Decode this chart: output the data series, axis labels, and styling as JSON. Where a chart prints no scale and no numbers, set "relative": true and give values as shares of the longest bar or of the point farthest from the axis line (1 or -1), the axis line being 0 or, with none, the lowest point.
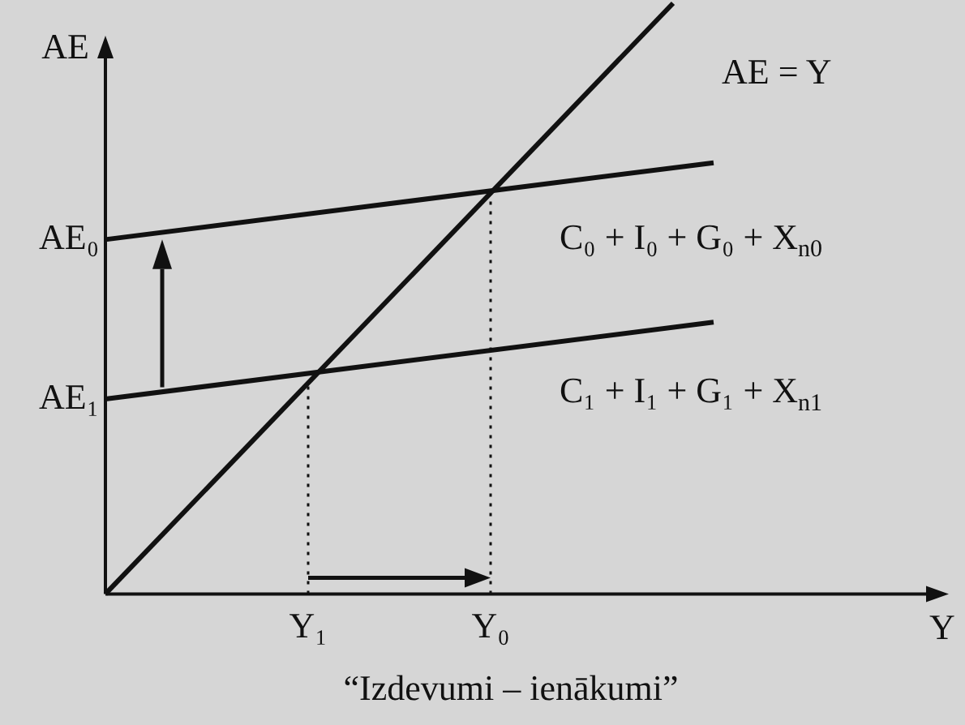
{
  "chart_data": {
    "type": "line",
    "relative": true,
    "title": "“Izdevumi – ienākumi”",
    "xlabel": "Y",
    "ylabel": "AE",
    "categories": [
      null,
      null,
      null,
      null,
      null,
      null,
      null,
      null,
      null,
      null,
      "Y₁",
      null,
      null,
      null,
      null,
      null,
      null,
      null,
      null,
      "Y₀",
      null,
      null,
      null,
      null,
      null,
      null,
      null,
      null,
      null,
      null,
      null,
      null,
      null,
      null,
      null,
      null,
      null,
      null,
      null,
      null,
      null
    ],
    "tick_labels": "x",
    "legend": false,
    "grid": false,
    "marker": "none",
    "series": [
      {
        "color": "#111111",
        "values": [
          0,
          null,
          null,
          null,
          null,
          null,
          null,
          null,
          null,
          null,
          null,
          null,
          null,
          null,
          null,
          null,
          null,
          null,
          null,
          null,
          null,
          null,
          null,
          null,
          null,
          null,
          null,
          null,
          1,
          null,
          null,
          null,
          null,
          null,
          null,
          null,
          null,
          null,
          null,
          null,
          null
        ]
      },
      {
        "color": "#111111",
        "values": [
          0.6,
          null,
          null,
          null,
          null,
          null,
          null,
          null,
          null,
          null,
          null,
          null,
          null,
          null,
          null,
          null,
          null,
          null,
          null,
          null,
          null,
          null,
          null,
          null,
          null,
          null,
          null,
          null,
          null,
          null,
          0.73,
          null,
          null,
          null,
          null,
          null,
          null,
          null,
          null,
          null,
          null
        ]
      },
      {
        "color": "#111111",
        "values": [
          0.33,
          null,
          null,
          null,
          null,
          null,
          null,
          null,
          null,
          null,
          null,
          null,
          null,
          null,
          null,
          null,
          null,
          null,
          null,
          null,
          null,
          null,
          null,
          null,
          null,
          null,
          null,
          null,
          null,
          null,
          0.46,
          null,
          null,
          null,
          null,
          null,
          null,
          null,
          null,
          null,
          null
        ]
      }
    ],
    "ref_lines": [
      {
        "axis": "x",
        "value": "Y₁",
        "line_style": "dotted"
      },
      {
        "axis": "x",
        "value": "Y₀",
        "line_style": "dotted"
      }
    ],
    "annotations": [
      "AE = Y",
      "C₀ + I₀ + G₀ + X$_{n0}$",
      "C₁ + I₁ + G₁ + X$_{n1}$",
      "AE₀",
      "AE₁"
    ]
  }
}
